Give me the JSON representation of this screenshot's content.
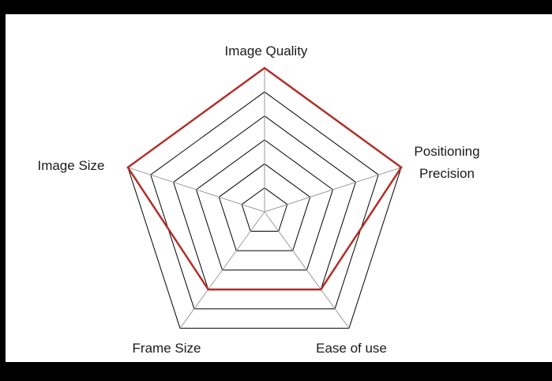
{
  "chart_data": {
    "type": "radar",
    "axes": [
      "Image Quality",
      "Positioning Precision",
      "Ease of use",
      "Frame Size",
      "Image Size"
    ],
    "axis_labels": {
      "image_quality": "Image Quality",
      "positioning_precision_line1": "Positioning",
      "positioning_precision_line2": "Precision",
      "ease_of_use": "Ease of use",
      "frame_size": "Frame Size",
      "image_size": "Image Size"
    },
    "levels": 6,
    "range": [
      0,
      6
    ],
    "series": [
      {
        "values": [
          6,
          6,
          4,
          4,
          6
        ],
        "color": "#b0302a"
      }
    ],
    "grid_color": "#000000",
    "center_spoke_color": "#9a9a9a"
  }
}
